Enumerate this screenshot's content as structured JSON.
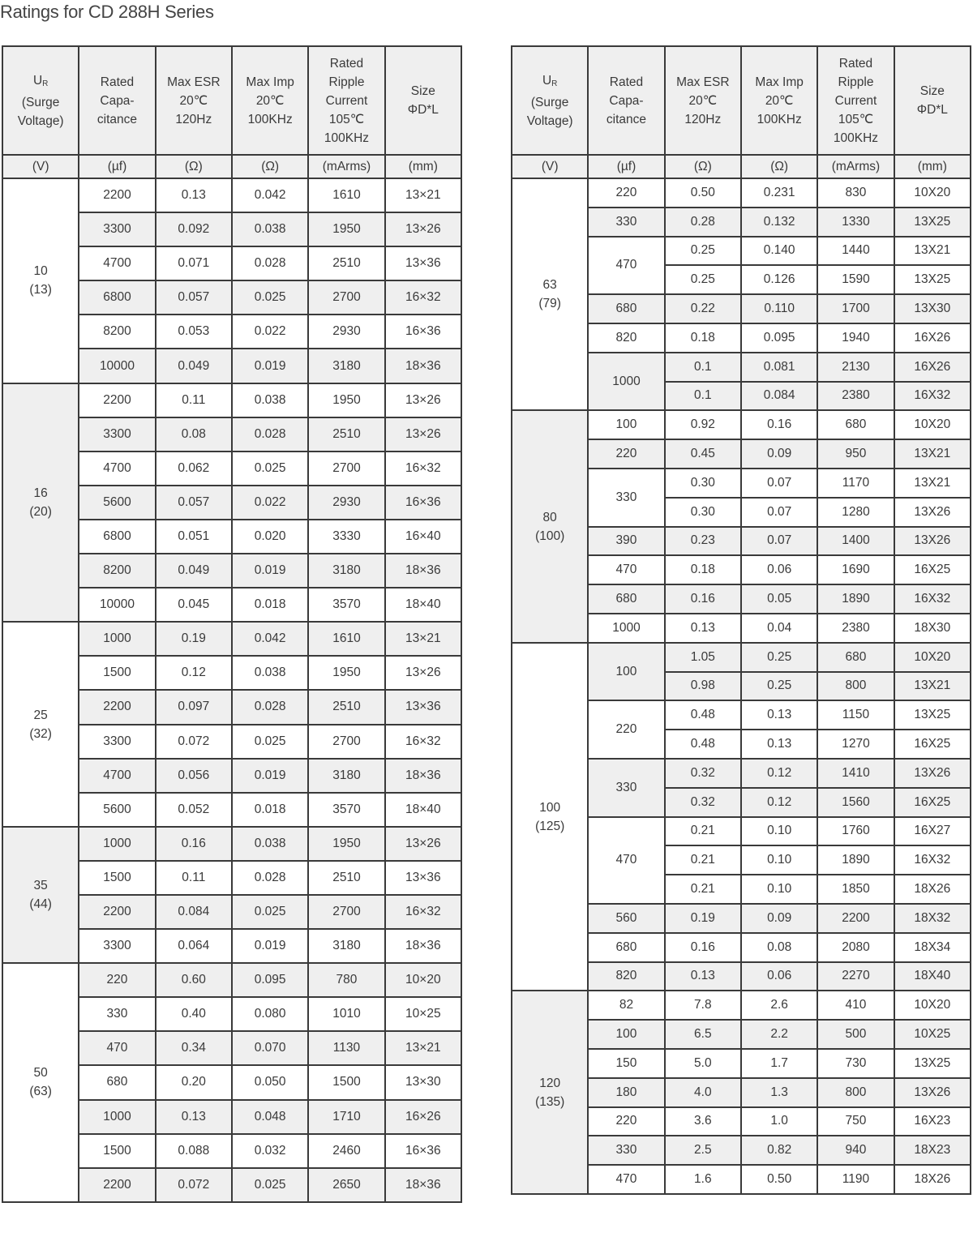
{
  "title": "Ratings for CD 288H  Series",
  "colors": {
    "shade": "#efefef",
    "border": "#3a3a3a",
    "text": "#3a3a3a"
  },
  "header": {
    "columns": [
      {
        "lines": [
          "U|R",
          "(Surge",
          "Voltage)"
        ]
      },
      {
        "lines": [
          "Rated",
          "Capa-",
          "citance"
        ]
      },
      {
        "lines": [
          "Max ESR",
          "20℃",
          "120Hz"
        ]
      },
      {
        "lines": [
          "Max Imp",
          "20℃",
          "100KHz"
        ]
      },
      {
        "lines": [
          "Rated",
          "Ripple",
          "Current",
          "105℃",
          "100KHz"
        ]
      },
      {
        "lines": [
          "Size",
          "ΦD*L"
        ]
      }
    ],
    "units": [
      "(V)",
      "(µf)",
      "(Ω)",
      "(Ω)",
      "(mArms)",
      "(mm)"
    ]
  },
  "tables": [
    {
      "groups": [
        {
          "voltage": "10",
          "surge": "(13)",
          "shade": false,
          "caps": [
            {
              "cap": "2200",
              "shade": false,
              "rows": [
                [
                  "0.13",
                  "0.042",
                  "1610",
                  "13×21"
                ]
              ]
            },
            {
              "cap": "3300",
              "shade": true,
              "rows": [
                [
                  "0.092",
                  "0.038",
                  "1950",
                  "13×26"
                ]
              ]
            },
            {
              "cap": "4700",
              "shade": false,
              "rows": [
                [
                  "0.071",
                  "0.028",
                  "2510",
                  "13×36"
                ]
              ]
            },
            {
              "cap": "6800",
              "shade": true,
              "rows": [
                [
                  "0.057",
                  "0.025",
                  "2700",
                  "16×32"
                ]
              ]
            },
            {
              "cap": "8200",
              "shade": false,
              "rows": [
                [
                  "0.053",
                  "0.022",
                  "2930",
                  "16×36"
                ]
              ]
            },
            {
              "cap": "10000",
              "shade": true,
              "rows": [
                [
                  "0.049",
                  "0.019",
                  "3180",
                  "18×36"
                ]
              ]
            }
          ]
        },
        {
          "voltage": "16",
          "surge": "(20)",
          "shade": true,
          "caps": [
            {
              "cap": "2200",
              "shade": false,
              "rows": [
                [
                  "0.11",
                  "0.038",
                  "1950",
                  "13×26"
                ]
              ]
            },
            {
              "cap": "3300",
              "shade": true,
              "rows": [
                [
                  "0.08",
                  "0.028",
                  "2510",
                  "13×26"
                ]
              ]
            },
            {
              "cap": "4700",
              "shade": false,
              "rows": [
                [
                  "0.062",
                  "0.025",
                  "2700",
                  "16×32"
                ]
              ]
            },
            {
              "cap": "5600",
              "shade": true,
              "rows": [
                [
                  "0.057",
                  "0.022",
                  "2930",
                  "16×36"
                ]
              ]
            },
            {
              "cap": "6800",
              "shade": false,
              "rows": [
                [
                  "0.051",
                  "0.020",
                  "3330",
                  "16×40"
                ]
              ]
            },
            {
              "cap": "8200",
              "shade": true,
              "rows": [
                [
                  "0.049",
                  "0.019",
                  "3180",
                  "18×36"
                ]
              ]
            },
            {
              "cap": "10000",
              "shade": false,
              "rows": [
                [
                  "0.045",
                  "0.018",
                  "3570",
                  "18×40"
                ]
              ]
            }
          ]
        },
        {
          "voltage": "25",
          "surge": "(32)",
          "shade": false,
          "caps": [
            {
              "cap": "1000",
              "shade": true,
              "rows": [
                [
                  "0.19",
                  "0.042",
                  "1610",
                  "13×21"
                ]
              ]
            },
            {
              "cap": "1500",
              "shade": false,
              "rows": [
                [
                  "0.12",
                  "0.038",
                  "1950",
                  "13×26"
                ]
              ]
            },
            {
              "cap": "2200",
              "shade": true,
              "rows": [
                [
                  "0.097",
                  "0.028",
                  "2510",
                  "13×36"
                ]
              ]
            },
            {
              "cap": "3300",
              "shade": false,
              "rows": [
                [
                  "0.072",
                  "0.025",
                  "2700",
                  "16×32"
                ]
              ]
            },
            {
              "cap": "4700",
              "shade": true,
              "rows": [
                [
                  "0.056",
                  "0.019",
                  "3180",
                  "18×36"
                ]
              ]
            },
            {
              "cap": "5600",
              "shade": false,
              "rows": [
                [
                  "0.052",
                  "0.018",
                  "3570",
                  "18×40"
                ]
              ]
            }
          ]
        },
        {
          "voltage": "35",
          "surge": "(44)",
          "shade": true,
          "caps": [
            {
              "cap": "1000",
              "shade": true,
              "rows": [
                [
                  "0.16",
                  "0.038",
                  "1950",
                  "13×26"
                ]
              ]
            },
            {
              "cap": "1500",
              "shade": false,
              "rows": [
                [
                  "0.11",
                  "0.028",
                  "2510",
                  "13×36"
                ]
              ]
            },
            {
              "cap": "2200",
              "shade": true,
              "rows": [
                [
                  "0.084",
                  "0.025",
                  "2700",
                  "16×32"
                ]
              ]
            },
            {
              "cap": "3300",
              "shade": false,
              "rows": [
                [
                  "0.064",
                  "0.019",
                  "3180",
                  "18×36"
                ]
              ]
            }
          ]
        },
        {
          "voltage": "50",
          "surge": "(63)",
          "shade": false,
          "caps": [
            {
              "cap": "220",
              "shade": true,
              "rows": [
                [
                  "0.60",
                  "0.095",
                  "780",
                  "10×20"
                ]
              ]
            },
            {
              "cap": "330",
              "shade": false,
              "rows": [
                [
                  "0.40",
                  "0.080",
                  "1010",
                  "10×25"
                ]
              ]
            },
            {
              "cap": "470",
              "shade": true,
              "rows": [
                [
                  "0.34",
                  "0.070",
                  "1130",
                  "13×21"
                ]
              ]
            },
            {
              "cap": "680",
              "shade": false,
              "rows": [
                [
                  "0.20",
                  "0.050",
                  "1500",
                  "13×30"
                ]
              ]
            },
            {
              "cap": "1000",
              "shade": true,
              "rows": [
                [
                  "0.13",
                  "0.048",
                  "1710",
                  "16×26"
                ]
              ]
            },
            {
              "cap": "1500",
              "shade": false,
              "rows": [
                [
                  "0.088",
                  "0.032",
                  "2460",
                  "16×36"
                ]
              ]
            },
            {
              "cap": "2200",
              "shade": true,
              "rows": [
                [
                  "0.072",
                  "0.025",
                  "2650",
                  "18×36"
                ]
              ]
            }
          ]
        }
      ]
    },
    {
      "groups": [
        {
          "voltage": "63",
          "surge": "(79)",
          "shade": false,
          "caps": [
            {
              "cap": "220",
              "shade": false,
              "rows": [
                [
                  "0.50",
                  "0.231",
                  "830",
                  "10X20"
                ]
              ]
            },
            {
              "cap": "330",
              "shade": true,
              "rows": [
                [
                  "0.28",
                  "0.132",
                  "1330",
                  "13X25"
                ]
              ]
            },
            {
              "cap": "470",
              "shade": false,
              "rows": [
                [
                  "0.25",
                  "0.140",
                  "1440",
                  "13X21"
                ],
                [
                  "0.25",
                  "0.126",
                  "1590",
                  "13X25"
                ]
              ]
            },
            {
              "cap": "680",
              "shade": true,
              "rows": [
                [
                  "0.22",
                  "0.110",
                  "1700",
                  "13X30"
                ]
              ]
            },
            {
              "cap": "820",
              "shade": false,
              "rows": [
                [
                  "0.18",
                  "0.095",
                  "1940",
                  "16X26"
                ]
              ]
            },
            {
              "cap": "1000",
              "shade": true,
              "rows": [
                [
                  "0.1",
                  "0.081",
                  "2130",
                  "16X26"
                ],
                [
                  "0.1",
                  "0.084",
                  "2380",
                  "16X32"
                ]
              ]
            }
          ]
        },
        {
          "voltage": "80",
          "surge": "(100)",
          "shade": true,
          "caps": [
            {
              "cap": "100",
              "shade": false,
              "rows": [
                [
                  "0.92",
                  "0.16",
                  "680",
                  "10X20"
                ]
              ]
            },
            {
              "cap": "220",
              "shade": true,
              "rows": [
                [
                  "0.45",
                  "0.09",
                  "950",
                  "13X21"
                ]
              ]
            },
            {
              "cap": "330",
              "shade": false,
              "rows": [
                [
                  "0.30",
                  "0.07",
                  "1170",
                  "13X21"
                ],
                [
                  "0.30",
                  "0.07",
                  "1280",
                  "13X26"
                ]
              ]
            },
            {
              "cap": "390",
              "shade": true,
              "rows": [
                [
                  "0.23",
                  "0.07",
                  "1400",
                  "13X26"
                ]
              ]
            },
            {
              "cap": "470",
              "shade": false,
              "rows": [
                [
                  "0.18",
                  "0.06",
                  "1690",
                  "16X25"
                ]
              ]
            },
            {
              "cap": "680",
              "shade": true,
              "rows": [
                [
                  "0.16",
                  "0.05",
                  "1890",
                  "16X32"
                ]
              ]
            },
            {
              "cap": "1000",
              "shade": false,
              "rows": [
                [
                  "0.13",
                  "0.04",
                  "2380",
                  "18X30"
                ]
              ]
            }
          ]
        },
        {
          "voltage": "100",
          "surge": "(125)",
          "shade": false,
          "caps": [
            {
              "cap": "100",
              "shade": true,
              "rows": [
                [
                  "1.05",
                  "0.25",
                  "680",
                  "10X20"
                ],
                [
                  "0.98",
                  "0.25",
                  "800",
                  "13X21"
                ]
              ]
            },
            {
              "cap": "220",
              "shade": false,
              "rows": [
                [
                  "0.48",
                  "0.13",
                  "1150",
                  "13X25"
                ],
                [
                  "0.48",
                  "0.13",
                  "1270",
                  "16X25"
                ]
              ]
            },
            {
              "cap": "330",
              "shade": true,
              "rows": [
                [
                  "0.32",
                  "0.12",
                  "1410",
                  "13X26"
                ],
                [
                  "0.32",
                  "0.12",
                  "1560",
                  "16X25"
                ]
              ]
            },
            {
              "cap": "470",
              "shade": false,
              "rows": [
                [
                  "0.21",
                  "0.10",
                  "1760",
                  "16X27"
                ],
                [
                  "0.21",
                  "0.10",
                  "1890",
                  "16X32"
                ],
                [
                  "0.21",
                  "0.10",
                  "1850",
                  "18X26"
                ]
              ]
            },
            {
              "cap": "560",
              "shade": true,
              "rows": [
                [
                  "0.19",
                  "0.09",
                  "2200",
                  "18X32"
                ]
              ]
            },
            {
              "cap": "680",
              "shade": false,
              "rows": [
                [
                  "0.16",
                  "0.08",
                  "2080",
                  "18X34"
                ]
              ]
            },
            {
              "cap": "820",
              "shade": true,
              "rows": [
                [
                  "0.13",
                  "0.06",
                  "2270",
                  "18X40"
                ]
              ]
            }
          ]
        },
        {
          "voltage": "120",
          "surge": "(135)",
          "shade": true,
          "caps": [
            {
              "cap": "82",
              "shade": false,
              "rows": [
                [
                  "7.8",
                  "2.6",
                  "410",
                  "10X20"
                ]
              ]
            },
            {
              "cap": "100",
              "shade": true,
              "rows": [
                [
                  "6.5",
                  "2.2",
                  "500",
                  "10X25"
                ]
              ]
            },
            {
              "cap": "150",
              "shade": false,
              "rows": [
                [
                  "5.0",
                  "1.7",
                  "730",
                  "13X25"
                ]
              ]
            },
            {
              "cap": "180",
              "shade": true,
              "rows": [
                [
                  "4.0",
                  "1.3",
                  "800",
                  "13X26"
                ]
              ]
            },
            {
              "cap": "220",
              "shade": false,
              "rows": [
                [
                  "3.6",
                  "1.0",
                  "750",
                  "16X23"
                ]
              ]
            },
            {
              "cap": "330",
              "shade": true,
              "rows": [
                [
                  "2.5",
                  "0.82",
                  "940",
                  "18X23"
                ]
              ]
            },
            {
              "cap": "470",
              "shade": false,
              "rows": [
                [
                  "1.6",
                  "0.50",
                  "1190",
                  "18X26"
                ]
              ]
            }
          ]
        }
      ]
    }
  ]
}
